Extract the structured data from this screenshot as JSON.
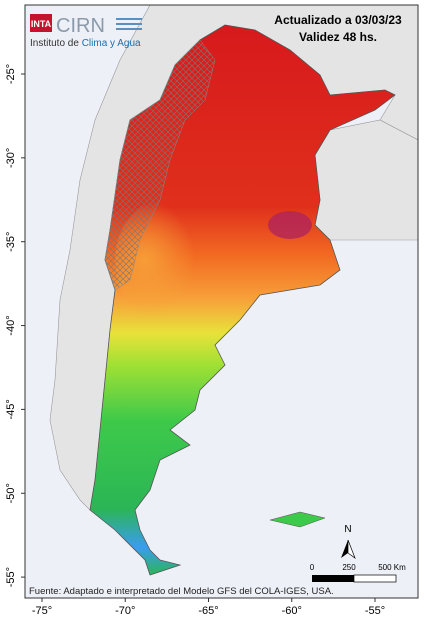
{
  "header": {
    "logo_inta": "INTA",
    "logo_cirn": "CIRN",
    "institute_prefix": "Instituto de",
    "institute_name": "Clima y Agua",
    "updated": "Actualizado a 03/03/23",
    "validity": "Validez 48 hs."
  },
  "map": {
    "lat_ticks": [
      {
        "value": -25,
        "label": "-25°"
      },
      {
        "value": -30,
        "label": "-30°"
      },
      {
        "value": -35,
        "label": "-35°"
      },
      {
        "value": -40,
        "label": "-40°"
      },
      {
        "value": -45,
        "label": "-45°"
      },
      {
        "value": -50,
        "label": "-50°"
      },
      {
        "value": -55,
        "label": "-55°"
      }
    ],
    "lon_ticks": [
      {
        "value": -75,
        "label": "-75°"
      },
      {
        "value": -70,
        "label": "-70°"
      },
      {
        "value": -65,
        "label": "-65°"
      },
      {
        "value": -60,
        "label": "-60°"
      },
      {
        "value": -55,
        "label": "-55°"
      }
    ],
    "north": "N",
    "scale_labels": [
      "0",
      "250",
      "500 Km"
    ],
    "source": "Fuente: Adaptado e interpretado del Modelo GFS del COLA-IGES, USA."
  }
}
